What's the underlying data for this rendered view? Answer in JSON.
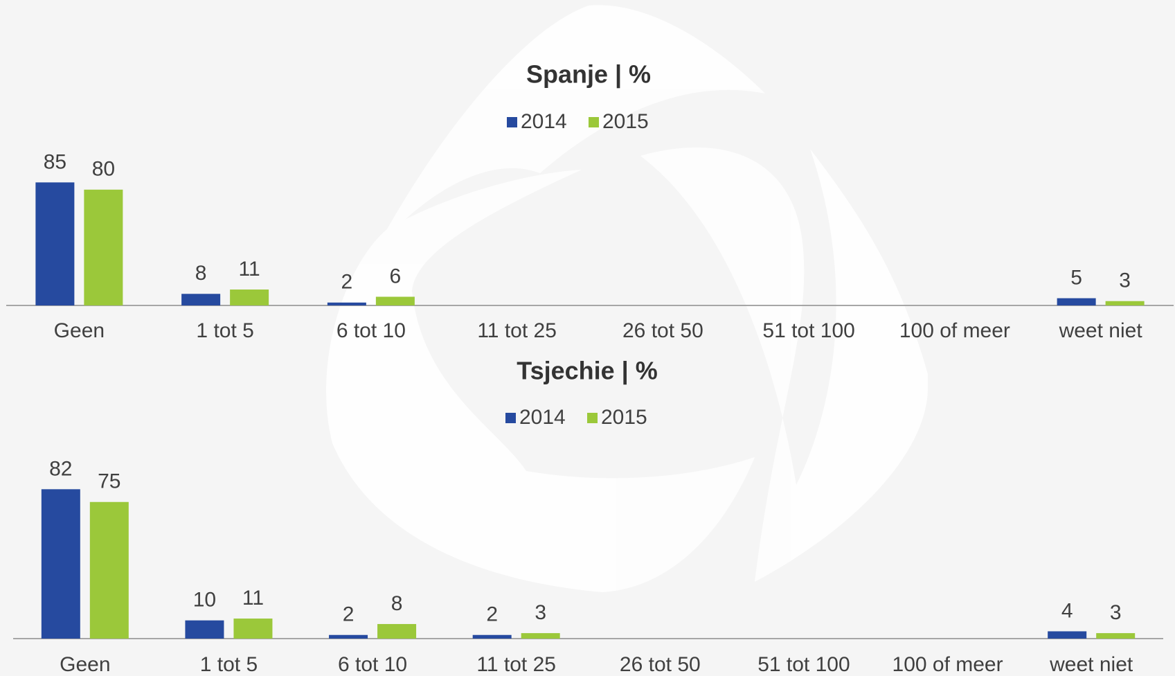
{
  "chart_data": [
    {
      "type": "bar",
      "title": "Spanje | %",
      "categories": [
        "Geen",
        "1 tot 5",
        "6 tot 10",
        "11 tot 25",
        "26 tot 50",
        "51 tot 100",
        "100 of meer",
        "weet niet"
      ],
      "series": [
        {
          "name": "2014",
          "color": "#264a9f",
          "values": [
            85,
            8,
            2,
            null,
            null,
            null,
            null,
            5
          ]
        },
        {
          "name": "2015",
          "color": "#9bc83a",
          "values": [
            80,
            11,
            6,
            null,
            null,
            null,
            null,
            3
          ]
        }
      ],
      "ylim": [
        0,
        100
      ],
      "legend": "top"
    },
    {
      "type": "bar",
      "title": "Tsjechie | %",
      "categories": [
        "Geen",
        "1 tot 5",
        "6 tot 10",
        "11 tot 25",
        "26 tot 50",
        "51 tot 100",
        "100 of meer",
        "weet niet"
      ],
      "series": [
        {
          "name": "2014",
          "color": "#264a9f",
          "values": [
            82,
            10,
            2,
            2,
            null,
            null,
            null,
            4
          ]
        },
        {
          "name": "2015",
          "color": "#9bc83a",
          "values": [
            75,
            11,
            8,
            3,
            null,
            null,
            null,
            3
          ]
        }
      ],
      "ylim": [
        0,
        100
      ],
      "legend": "top"
    }
  ]
}
